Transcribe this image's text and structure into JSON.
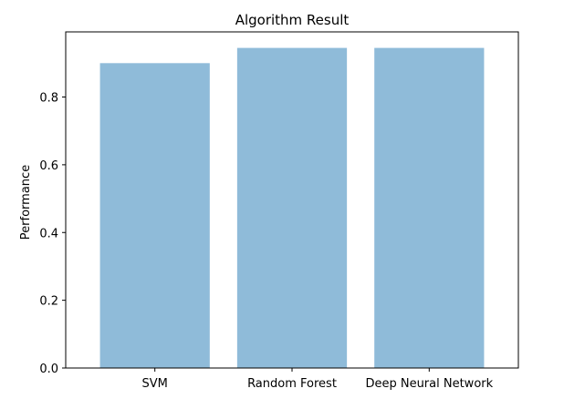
{
  "chart_data": {
    "type": "bar",
    "title": "Algorithm Result",
    "xlabel": "",
    "ylabel": "Performance",
    "categories": [
      "SVM",
      "Random Forest",
      "Deep Neural Network"
    ],
    "values": [
      0.9,
      0.945,
      0.945
    ],
    "ylim": [
      0,
      0.9923
    ],
    "yticks": [
      0.0,
      0.2,
      0.4,
      0.6,
      0.8
    ],
    "ytick_labels": [
      "0.0",
      "0.2",
      "0.4",
      "0.6",
      "0.8"
    ],
    "bar_color": "#1f77b4",
    "bar_alpha": 0.5,
    "grid": false,
    "legend": "none"
  }
}
